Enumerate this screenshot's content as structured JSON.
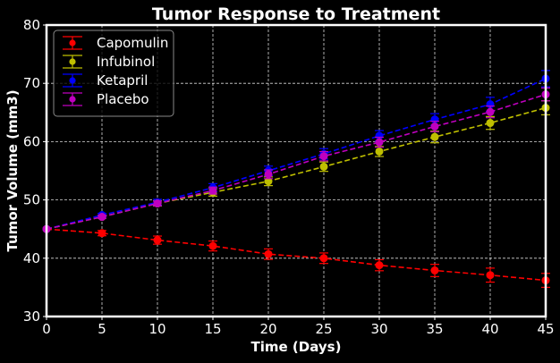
{
  "chart_data": {
    "type": "line",
    "title": "Tumor Response to Treatment",
    "xlabel": "Time (Days)",
    "ylabel": "Tumor Volume (mm3)",
    "xlim": [
      0,
      45
    ],
    "ylim": [
      30,
      80
    ],
    "xticks": [
      0,
      5,
      10,
      15,
      20,
      25,
      30,
      35,
      40,
      45
    ],
    "yticks": [
      30,
      40,
      50,
      60,
      70,
      80
    ],
    "grid": true,
    "grid_style": "dashed",
    "legend_position": "top-left",
    "x": [
      0,
      5,
      10,
      15,
      20,
      25,
      30,
      35,
      40,
      45
    ],
    "series": [
      {
        "name": "Capomulin",
        "color": "#ff0000",
        "values": [
          45.0,
          44.3,
          43.1,
          42.1,
          40.7,
          40.0,
          38.8,
          37.9,
          37.1,
          36.2
        ],
        "errors": [
          0.0,
          0.45,
          0.7,
          0.85,
          0.9,
          0.9,
          0.95,
          1.05,
          1.2,
          1.2
        ]
      },
      {
        "name": "Infubinol",
        "color": "#bfbf00",
        "values": [
          45.0,
          47.1,
          49.4,
          51.3,
          53.2,
          55.7,
          58.3,
          60.8,
          63.2,
          65.8
        ],
        "errors": [
          0.0,
          0.25,
          0.45,
          0.65,
          0.75,
          0.8,
          0.85,
          1.0,
          1.1,
          1.2
        ]
      },
      {
        "name": "Ketapril",
        "color": "#0000ff",
        "values": [
          45.0,
          47.4,
          49.6,
          52.1,
          55.0,
          57.9,
          61.0,
          63.8,
          66.4,
          70.8
        ],
        "errors": [
          0.0,
          0.3,
          0.5,
          0.7,
          0.8,
          0.9,
          0.9,
          1.0,
          1.2,
          1.4
        ]
      },
      {
        "name": "Placebo",
        "color": "#bf00bf",
        "values": [
          45.0,
          47.1,
          49.4,
          51.6,
          54.4,
          57.5,
          59.9,
          62.6,
          65.1,
          68.1
        ],
        "errors": [
          0.0,
          0.25,
          0.4,
          0.6,
          0.75,
          0.8,
          0.85,
          0.9,
          1.0,
          1.1
        ]
      }
    ]
  }
}
